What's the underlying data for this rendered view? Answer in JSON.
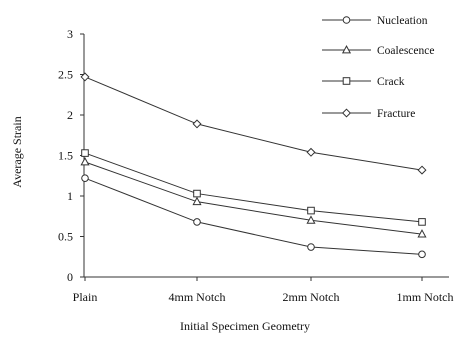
{
  "chart_data": {
    "type": "line",
    "title": "",
    "xlabel": "Initial Specimen Geometry",
    "ylabel": "Average Strain",
    "categories": [
      "Plain",
      "4mm Notch",
      "2mm Notch",
      "1mm Notch"
    ],
    "ylim": [
      0,
      3
    ],
    "yticks": [
      "0",
      "0.5",
      "1",
      "1.5",
      "2",
      "2.5",
      "3"
    ],
    "ytick_values": [
      0,
      0.5,
      1,
      1.5,
      2,
      2.5,
      3
    ],
    "grid": false,
    "legend_position": "top-right",
    "series": [
      {
        "name": "Nucleation",
        "marker": "circle",
        "values": [
          1.22,
          0.68,
          0.37,
          0.28
        ]
      },
      {
        "name": "Coalescence",
        "marker": "triangle",
        "values": [
          1.42,
          0.93,
          0.7,
          0.53
        ]
      },
      {
        "name": "Crack",
        "marker": "square",
        "values": [
          1.53,
          1.03,
          0.82,
          0.68
        ]
      },
      {
        "name": "Fracture",
        "marker": "diamond",
        "values": [
          2.47,
          1.89,
          1.54,
          1.32
        ]
      }
    ],
    "line_color": "#333333",
    "marker_fill": "#ffffff"
  }
}
